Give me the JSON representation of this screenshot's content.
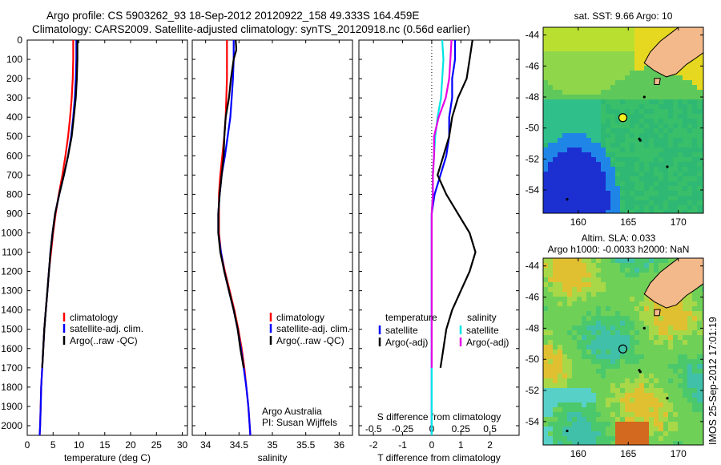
{
  "header": {
    "line1": "Argo profile: CS 5903262_93 18-Sep-2012 20120922_158 49.333S 164.459E",
    "line2": "Climatology: CARS2009. Satellite-adjusted climatology: synTS_20120918.nc (0.56d earlier)"
  },
  "credit": "IMOS 25-Sep-2012 17:01:19",
  "colors": {
    "climatology": "#ff0000",
    "satellite": "#0000ff",
    "argo": "#000000",
    "sat_salinity": "#00e5e5",
    "argo_salinity": "#e600e6",
    "land": "#f4b98a"
  },
  "chart_data": [
    {
      "type": "line",
      "xlabel": "temperature (deg C)",
      "xlim": [
        0,
        31
      ],
      "ylim": [
        2050,
        0
      ],
      "xticks": [
        "0",
        "5",
        "10",
        "15",
        "20",
        "25",
        "30"
      ],
      "yticks": [
        "0",
        "100",
        "200",
        "300",
        "400",
        "500",
        "600",
        "700",
        "800",
        "900",
        "1000",
        "1100",
        "1200",
        "1300",
        "1400",
        "1500",
        "1600",
        "1700",
        "1800",
        "1900",
        "2000"
      ],
      "legend": [
        "climatology",
        "satellite-adj. clim.",
        "Argo(..raw -QC)"
      ],
      "series": [
        {
          "name": "climatology",
          "color": "#ff0000",
          "y": [
            0,
            100,
            200,
            300,
            400,
            500,
            600,
            700,
            800,
            900,
            1000,
            1100,
            1200,
            1300,
            1400,
            1500,
            1600,
            1700,
            1800,
            1900,
            2000,
            2050
          ],
          "x": [
            8.9,
            8.9,
            8.8,
            8.6,
            8.3,
            7.9,
            7.4,
            6.8,
            6.1,
            5.5,
            5.0,
            4.6,
            4.2,
            3.9,
            3.6,
            3.3,
            3.1,
            2.9,
            2.7,
            2.6,
            2.5,
            2.4
          ]
        },
        {
          "name": "satellite-adj. clim.",
          "color": "#0000ff",
          "y": [
            0,
            100,
            200,
            300,
            400,
            500,
            600,
            700,
            800,
            900,
            1000,
            1100,
            1200,
            1300,
            1400,
            1500,
            1600,
            1700,
            1800,
            1900,
            2000,
            2050
          ],
          "x": [
            9.5,
            9.5,
            9.4,
            9.2,
            8.9,
            8.5,
            7.9,
            7.1,
            6.2,
            5.4,
            4.9,
            4.5,
            4.2,
            3.9,
            3.6,
            3.3,
            3.1,
            2.9,
            2.7,
            2.6,
            2.5,
            2.4
          ]
        },
        {
          "name": "Argo(..raw -QC)",
          "color": "#000000",
          "y": [
            0,
            100,
            200,
            300,
            400,
            500,
            600,
            700,
            800,
            900,
            1000,
            1100,
            1200,
            1300,
            1400,
            1500,
            1600,
            1700
          ],
          "x": [
            9.7,
            9.7,
            9.6,
            9.4,
            9.0,
            8.6,
            7.9,
            7.1,
            6.2,
            5.4,
            4.9,
            4.5,
            4.2,
            3.9,
            3.6,
            3.3,
            3.1,
            2.9
          ]
        }
      ]
    },
    {
      "type": "line",
      "xlabel": "salinity",
      "xlim": [
        33.8,
        36.2
      ],
      "ylim": [
        2050,
        0
      ],
      "xticks": [
        "34",
        "34.5",
        "35",
        "35.5",
        "36"
      ],
      "legend": [
        "climatology",
        "satellite-adj. clim.",
        "Argo(..raw -QC)"
      ],
      "annotation": [
        "Argo Australia",
        "PI: Susan Wijffels"
      ],
      "series": [
        {
          "name": "climatology",
          "color": "#ff0000",
          "y": [
            0,
            100,
            200,
            300,
            400,
            500,
            600,
            700,
            800,
            900,
            1000,
            1100,
            1200,
            1300,
            1400,
            1500,
            1600,
            1700,
            1800,
            1900,
            2000,
            2050
          ],
          "x": [
            34.32,
            34.32,
            34.32,
            34.31,
            34.3,
            34.28,
            34.25,
            34.22,
            34.2,
            34.2,
            34.2,
            34.23,
            34.29,
            34.36,
            34.43,
            34.49,
            34.54,
            34.58,
            34.61,
            34.64,
            34.66,
            34.67
          ]
        },
        {
          "name": "satellite-adj. clim.",
          "color": "#0000ff",
          "y": [
            0,
            100,
            200,
            300,
            400,
            500,
            600,
            700,
            800,
            900,
            1000,
            1100,
            1200,
            1300,
            1400,
            1500,
            1600,
            1700,
            1800,
            1900,
            2000,
            2050
          ],
          "x": [
            34.42,
            34.42,
            34.41,
            34.39,
            34.37,
            34.33,
            34.29,
            34.24,
            34.21,
            34.19,
            34.19,
            34.23,
            34.28,
            34.35,
            34.42,
            34.48,
            34.53,
            34.57,
            34.61,
            34.64,
            34.66,
            34.67
          ]
        },
        {
          "name": "Argo(..raw -QC)",
          "color": "#000000",
          "y": [
            0,
            50,
            100,
            200,
            300,
            400,
            500,
            600,
            700,
            800,
            900,
            1000,
            1100,
            1200,
            1300,
            1400,
            1500,
            1600,
            1700
          ],
          "x": [
            34.45,
            34.46,
            34.42,
            34.38,
            34.35,
            34.3,
            34.28,
            34.27,
            34.24,
            34.21,
            34.19,
            34.19,
            34.22,
            34.28,
            34.35,
            34.42,
            34.48,
            34.52,
            34.57
          ]
        }
      ]
    },
    {
      "type": "line",
      "xlabel": "T difference from climatology",
      "xlabel_top": "S difference from climatology",
      "xlim": [
        -2.5,
        3
      ],
      "ylim": [
        2050,
        0
      ],
      "xticks": [
        "-2",
        "-1",
        "0",
        "1",
        "2"
      ],
      "xticks_top": [
        "-0.5",
        "-0.25",
        "0",
        "0.25",
        "0.5"
      ],
      "legend_titles": [
        "temperature",
        "salinity"
      ],
      "legend": [
        "satellite",
        "Argo(-adj)",
        "satellite",
        "Argo(-adj)"
      ],
      "series": [
        {
          "name": "satellite",
          "group": "temperature",
          "color": "#0000ff",
          "y": [
            0,
            100,
            200,
            300,
            400,
            500,
            600,
            700,
            800,
            900,
            1000,
            1100,
            1200,
            1300,
            1400,
            1500,
            1600,
            1700,
            1800,
            1900,
            2000,
            2050
          ],
          "x": [
            0.8,
            0.8,
            0.7,
            0.7,
            0.6,
            0.6,
            0.5,
            0.3,
            0.1,
            0.0,
            0.0,
            0.0,
            0.0,
            0.0,
            0.0,
            0.0,
            0.0,
            0.0,
            0.0,
            0.0,
            0.0,
            0.0
          ]
        },
        {
          "name": "Argo(-adj)",
          "group": "temperature",
          "color": "#000000",
          "y": [
            0,
            100,
            200,
            300,
            400,
            500,
            600,
            700,
            800,
            900,
            1000,
            1100,
            1200,
            1300,
            1400,
            1500,
            1600,
            1700
          ],
          "x": [
            1.4,
            1.3,
            1.2,
            0.9,
            0.7,
            0.6,
            0.4,
            0.2,
            0.5,
            0.9,
            1.3,
            1.5,
            1.3,
            1.0,
            0.7,
            0.5,
            0.4,
            0.3
          ]
        },
        {
          "name": "satellite",
          "group": "salinity",
          "color": "#00e5e5",
          "y": [
            0,
            100,
            200,
            300,
            400,
            500,
            600,
            700,
            800,
            900,
            1000,
            1100,
            1200,
            1300,
            1400,
            1500,
            1600,
            1700,
            1800,
            1900,
            2000,
            2050
          ],
          "x": [
            0.09,
            0.1,
            0.09,
            0.08,
            0.05,
            0.03,
            0.02,
            0.01,
            0.01,
            0.0,
            0.0,
            0.0,
            0.0,
            0.0,
            0.0,
            0.0,
            0.0,
            0.0,
            0.0,
            0.0,
            0.0,
            0.0
          ]
        },
        {
          "name": "Argo(-adj)",
          "group": "salinity",
          "color": "#e600e6",
          "y": [
            0,
            100,
            200,
            300,
            400,
            500,
            600,
            700,
            800,
            900,
            1000,
            1100,
            1200,
            1300,
            1400,
            1500,
            1600,
            1700
          ],
          "x": [
            0.17,
            0.16,
            0.15,
            0.12,
            0.06,
            0.02,
            0.02,
            0.01,
            0.01,
            0.0,
            0.0,
            0.0,
            0.0,
            0.0,
            0.0,
            0.0,
            0.0,
            0.0
          ]
        }
      ]
    },
    {
      "type": "heatmap",
      "title": "sat. SST: 9.66 Argo: 10",
      "xlim": [
        156.5,
        172.5
      ],
      "ylim": [
        -55.5,
        -43.5
      ],
      "xticks": [
        "160",
        "165",
        "170"
      ],
      "yticks": [
        "-44",
        "-46",
        "-48",
        "-50",
        "-52",
        "-54"
      ],
      "marker": {
        "lon": 164.459,
        "lat": -49.333
      }
    },
    {
      "type": "heatmap",
      "title": "Altim. SLA: 0.033",
      "subtitle": "Argo h1000: -0.0033 h2000: NaN",
      "xlim": [
        156.5,
        172.5
      ],
      "ylim": [
        -55.5,
        -43.5
      ],
      "xticks": [
        "160",
        "165",
        "170"
      ],
      "yticks": [
        "-44",
        "-46",
        "-48",
        "-50",
        "-52",
        "-54"
      ],
      "marker": {
        "lon": 164.459,
        "lat": -49.333
      }
    }
  ]
}
